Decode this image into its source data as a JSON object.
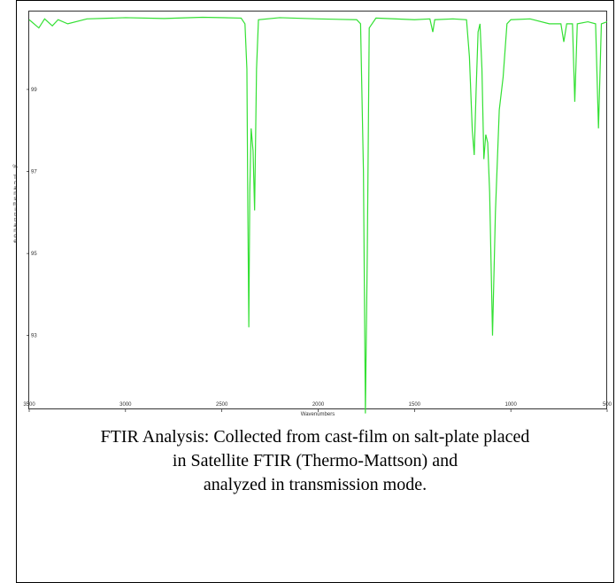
{
  "chart_data": {
    "type": "line",
    "xlabel": "Wavenumbers",
    "ylabel": "% Transmittance",
    "xlim": [
      3500,
      500
    ],
    "xticks": [
      3500,
      3000,
      2500,
      2000,
      1500,
      1000,
      500
    ],
    "ylim": [
      91.2,
      100.9
    ],
    "yticks": [
      99,
      97,
      95,
      93
    ],
    "grid": false,
    "series": [
      {
        "color": "#33e033",
        "x": [
          3500,
          3450,
          3420,
          3380,
          3350,
          3300,
          3200,
          3000,
          2800,
          2600,
          2400,
          2380,
          2370,
          2365,
          2360,
          2355,
          2348,
          2338,
          2330,
          2320,
          2310,
          2200,
          2000,
          1800,
          1780,
          1765,
          1755,
          1745,
          1735,
          1700,
          1500,
          1420,
          1405,
          1395,
          1300,
          1230,
          1215,
          1200,
          1190,
          1180,
          1170,
          1160,
          1150,
          1140,
          1130,
          1120,
          1110,
          1095,
          1080,
          1060,
          1040,
          1020,
          1000,
          900,
          800,
          740,
          725,
          710,
          680,
          668,
          655,
          600,
          560,
          545,
          530,
          500
        ],
        "values": [
          100.7,
          100.5,
          100.72,
          100.55,
          100.7,
          100.6,
          100.72,
          100.75,
          100.73,
          100.76,
          100.74,
          100.6,
          99.5,
          96,
          93.2,
          96.5,
          98.05,
          97.5,
          96.05,
          99.5,
          100.7,
          100.75,
          100.72,
          100.7,
          100.6,
          97,
          91.1,
          95,
          100.5,
          100.74,
          100.7,
          100.72,
          100.4,
          100.7,
          100.72,
          100.7,
          99.8,
          98,
          97.4,
          99,
          100.4,
          100.6,
          99.5,
          97.3,
          97.9,
          97.7,
          96.5,
          93,
          96,
          98.5,
          99.3,
          100.6,
          100.7,
          100.72,
          100.6,
          100.6,
          100.16,
          100.6,
          100.6,
          98.7,
          100.6,
          100.65,
          100.6,
          98.05,
          100.6,
          100.65
        ]
      }
    ]
  },
  "caption": [
    "FTIR Analysis: Collected from cast-film on salt-plate placed",
    "in Satellite FTIR (Thermo-Mattson) and",
    "analyzed in transmission mode."
  ]
}
